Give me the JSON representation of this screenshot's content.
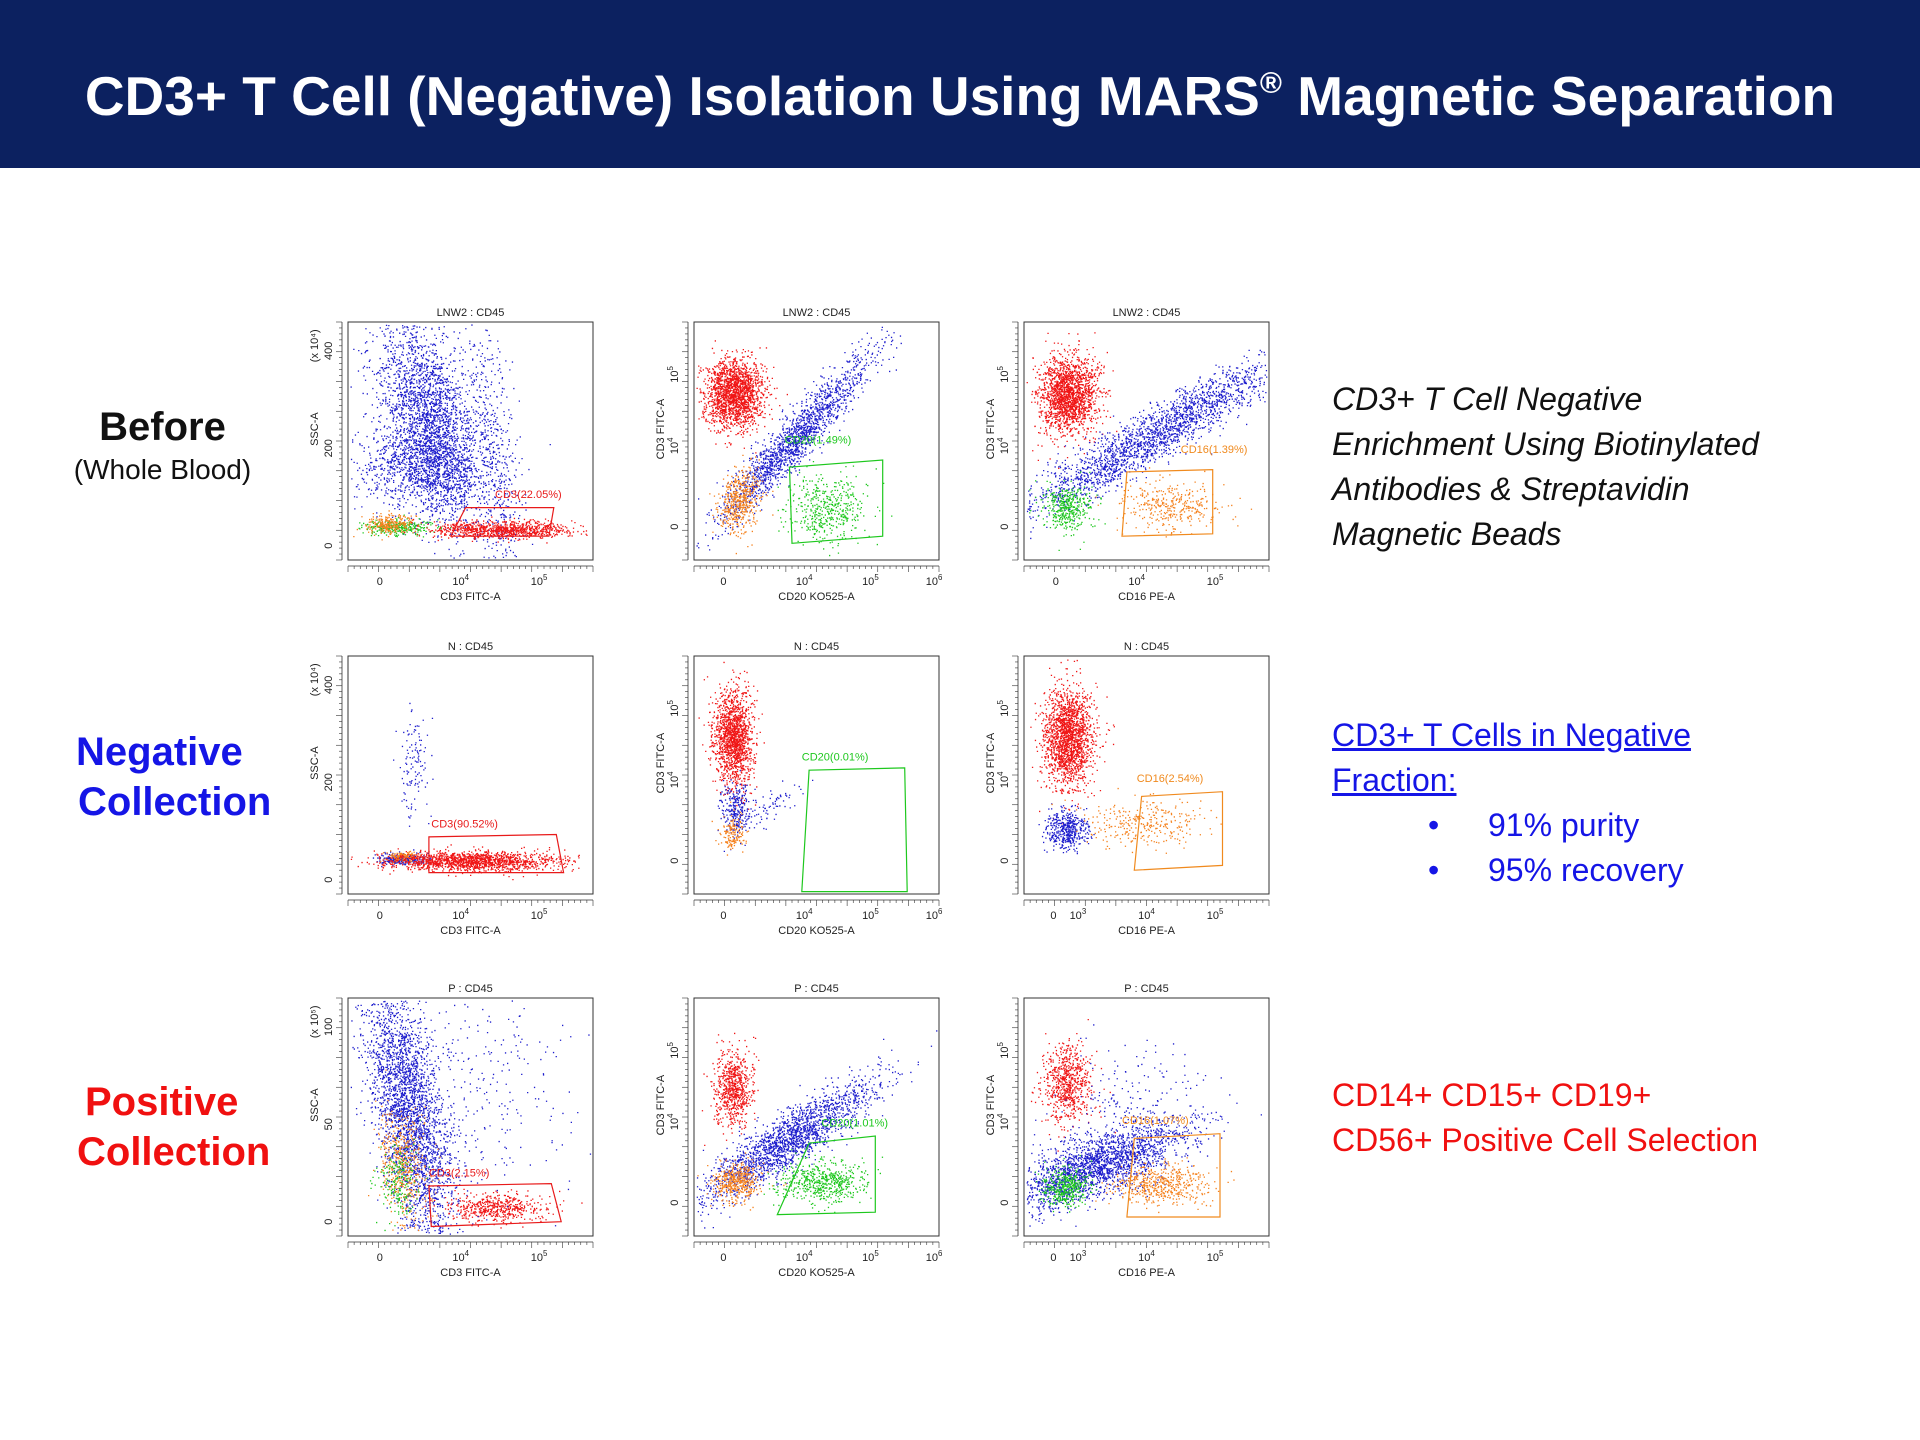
{
  "header": {
    "title": "CD3+ T Cell (Negative) Isolation Using MARS",
    "title_mark": "®",
    "title_tail": " Magnetic Separation"
  },
  "rows": [
    {
      "label": "Before",
      "sublabel": "(Whole Blood)"
    },
    {
      "label_line1": "Negative",
      "label_line2": "Collection"
    },
    {
      "label_line1": "Positive",
      "label_line2": "Collection"
    }
  ],
  "notes": {
    "before": [
      "CD3+ T Cell Negative",
      "Enrichment Using Biotinylated",
      "Antibodies & Streptavidin",
      "Magnetic Beads"
    ],
    "negative": {
      "title_line1": "CD3+ T Cells in Negative",
      "title_line2": "Fraction:",
      "bullets": [
        "91% purity",
        "95% recovery"
      ]
    },
    "positive": [
      "CD14+ CD15+ CD19+",
      "CD56+ Positive Cell Selection"
    ]
  },
  "colors": {
    "header_bg": "#0c2160",
    "blue_text": "#1515e6",
    "red_text": "#f01010",
    "gate_red": "#e81a1a",
    "gate_green": "#1ec81e",
    "gate_orange": "#f08a1e",
    "cells_blue": "#1e1ecd",
    "cells_red": "#f01616",
    "cells_orange": "#f5821e",
    "cells_green": "#1ec81e"
  },
  "chart_data": [
    {
      "type": "scatter",
      "row": "Before",
      "title": "LNW2 : CD45",
      "xlabel": "CD3 FITC-A",
      "ylabel": "SSC-A",
      "y_multiplier": "(x 10⁴)",
      "xscale": "biexponential",
      "x_ticks": [
        "0",
        "10⁴",
        "10⁵"
      ],
      "y_ticks": [
        "0",
        "200",
        "400"
      ],
      "ylim": [
        0,
        420
      ],
      "gate": {
        "label": "CD3(22.05%)",
        "percent": 22.05,
        "color": "#e81a1a"
      }
    },
    {
      "type": "scatter",
      "row": "Before",
      "title": "LNW2 : CD45",
      "xlabel": "CD20 KO525-A",
      "ylabel": "CD3 FITC-A",
      "xscale": "biexponential",
      "yscale": "biexponential",
      "x_ticks": [
        "0",
        "10⁴",
        "10⁵",
        "10⁶"
      ],
      "y_ticks": [
        "0",
        "10⁴",
        "10⁵"
      ],
      "gate": {
        "label": "CD20(1.49%)",
        "percent": 1.49,
        "color": "#1ec81e"
      }
    },
    {
      "type": "scatter",
      "row": "Before",
      "title": "LNW2 : CD45",
      "xlabel": "CD16 PE-A",
      "ylabel": "CD3 FITC-A",
      "xscale": "biexponential",
      "yscale": "biexponential",
      "x_ticks": [
        "0",
        "10⁴",
        "10⁵"
      ],
      "y_ticks": [
        "0",
        "10⁴",
        "10⁵"
      ],
      "gate": {
        "label": "CD16(1.39%)",
        "percent": 1.39,
        "color": "#f08a1e"
      }
    },
    {
      "type": "scatter",
      "row": "Negative Collection",
      "title": "N : CD45",
      "xlabel": "CD3 FITC-A",
      "ylabel": "SSC-A",
      "y_multiplier": "(x 10⁴)",
      "xscale": "biexponential",
      "x_ticks": [
        "0",
        "10⁴",
        "10⁵"
      ],
      "y_ticks": [
        "0",
        "200",
        "400"
      ],
      "ylim": [
        0,
        420
      ],
      "gate": {
        "label": "CD3(90.52%)",
        "percent": 90.52,
        "color": "#e81a1a"
      }
    },
    {
      "type": "scatter",
      "row": "Negative Collection",
      "title": "N : CD45",
      "xlabel": "CD20 KO525-A",
      "ylabel": "CD3 FITC-A",
      "xscale": "biexponential",
      "yscale": "biexponential",
      "x_ticks": [
        "0",
        "10⁴",
        "10⁵",
        "10⁶"
      ],
      "y_ticks": [
        "0",
        "10⁴",
        "10⁵"
      ],
      "gate": {
        "label": "CD20(0.01%)",
        "percent": 0.01,
        "color": "#1ec81e"
      }
    },
    {
      "type": "scatter",
      "row": "Negative Collection",
      "title": "N : CD45",
      "xlabel": "CD16 PE-A",
      "ylabel": "CD3 FITC-A",
      "xscale": "biexponential",
      "yscale": "biexponential",
      "x_ticks": [
        "0",
        "10³",
        "10⁴",
        "10⁵"
      ],
      "y_ticks": [
        "0",
        "10⁴",
        "10⁵"
      ],
      "gate": {
        "label": "CD16(2.54%)",
        "percent": 2.54,
        "color": "#f08a1e"
      }
    },
    {
      "type": "scatter",
      "row": "Positive Collection",
      "title": "P : CD45",
      "xlabel": "CD3 FITC-A",
      "ylabel": "SSC-A",
      "y_multiplier": "(x 10⁵)",
      "xscale": "biexponential",
      "x_ticks": [
        "0",
        "10⁴",
        "10⁵"
      ],
      "y_ticks": [
        "0",
        "50",
        "100"
      ],
      "ylim": [
        0,
        105
      ],
      "gate": {
        "label": "CD3(2.15%)",
        "percent": 2.15,
        "color": "#e81a1a"
      }
    },
    {
      "type": "scatter",
      "row": "Positive Collection",
      "title": "P : CD45",
      "xlabel": "CD20 KO525-A",
      "ylabel": "CD3 FITC-A",
      "xscale": "biexponential",
      "yscale": "biexponential",
      "x_ticks": [
        "0",
        "10⁴",
        "10⁵",
        "10⁶"
      ],
      "y_ticks": [
        "0",
        "10⁴",
        "10⁵"
      ],
      "gate": {
        "label": "CD20(1.01%)",
        "percent": 1.01,
        "color": "#1ec81e"
      }
    },
    {
      "type": "scatter",
      "row": "Positive Collection",
      "title": "P : CD45",
      "xlabel": "CD16 PE-A",
      "ylabel": "CD3 FITC-A",
      "xscale": "biexponential",
      "yscale": "biexponential",
      "x_ticks": [
        "0",
        "10³",
        "10⁴",
        "10⁵"
      ],
      "y_ticks": [
        "0",
        "10⁴",
        "10⁵"
      ],
      "gate": {
        "label": "CD16(1.07%)",
        "percent": 1.07,
        "color": "#f08a1e"
      }
    }
  ]
}
